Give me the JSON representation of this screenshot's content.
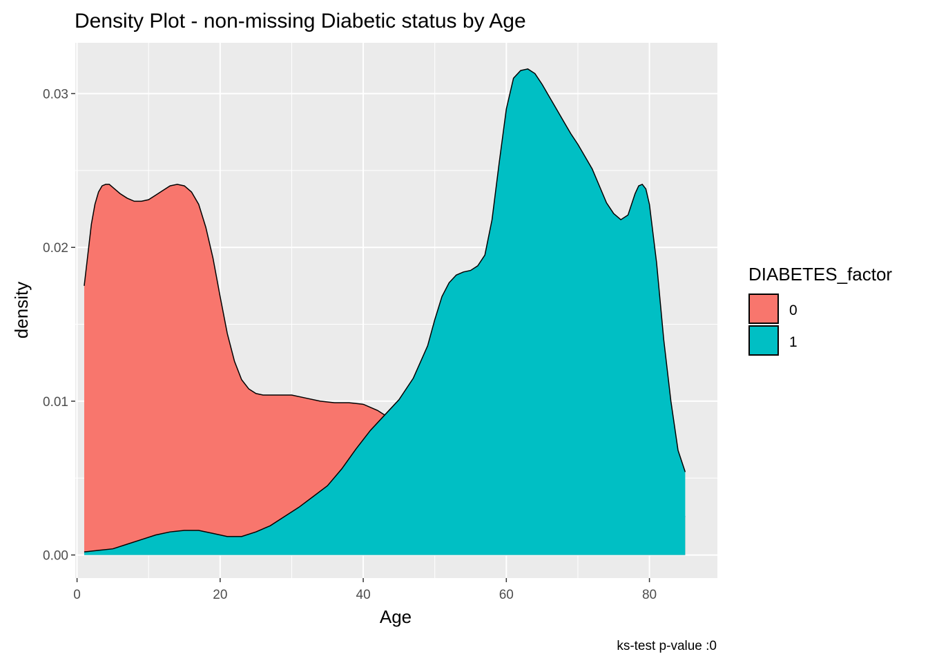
{
  "chart_data": {
    "type": "area",
    "title": "Density Plot - non-missing Diabetic status by Age",
    "xlabel": "Age",
    "ylabel": "density",
    "caption": "ks-test p-value :0",
    "xlim": [
      -0.25,
      89.5
    ],
    "ylim": [
      -0.0015,
      0.0333
    ],
    "x_ticks": [
      0,
      20,
      40,
      60,
      80
    ],
    "x_tick_labels": [
      "0",
      "20",
      "40",
      "60",
      "80"
    ],
    "y_ticks": [
      0.0,
      0.01,
      0.02,
      0.03
    ],
    "y_tick_labels": [
      "0.00",
      "0.01",
      "0.02",
      "0.03"
    ],
    "grid": true,
    "legend": {
      "title": "DIABETES_factor",
      "position": "right",
      "entries": [
        {
          "label": "0",
          "color": "#F8766D"
        },
        {
          "label": "1",
          "color": "#00BFC4"
        }
      ]
    },
    "series": [
      {
        "name": "0",
        "color": "#F8766D",
        "x": [
          1,
          1.5,
          2,
          2.5,
          3,
          3.5,
          4,
          4.5,
          5,
          6,
          7,
          8,
          9,
          10,
          11,
          12,
          13,
          14,
          15,
          16,
          17,
          18,
          19,
          20,
          21,
          22,
          23,
          24,
          25,
          26,
          28,
          30,
          32,
          34,
          36,
          38,
          40,
          42,
          44,
          46,
          48,
          50,
          52,
          54,
          56,
          58,
          60,
          62,
          64,
          66,
          68,
          70,
          72,
          74,
          76,
          78,
          80,
          82,
          84,
          85
        ],
        "y": [
          0.0175,
          0.0195,
          0.0215,
          0.0228,
          0.0236,
          0.024,
          0.0241,
          0.0241,
          0.0239,
          0.0235,
          0.0232,
          0.023,
          0.023,
          0.0231,
          0.0234,
          0.0237,
          0.024,
          0.0241,
          0.024,
          0.0236,
          0.0228,
          0.0213,
          0.0193,
          0.0168,
          0.0144,
          0.0126,
          0.0114,
          0.0108,
          0.0105,
          0.0104,
          0.0104,
          0.0104,
          0.0102,
          0.01,
          0.0099,
          0.0099,
          0.0098,
          0.0094,
          0.0088,
          0.008,
          0.0072,
          0.0064,
          0.0056,
          0.005,
          0.0045,
          0.0041,
          0.0037,
          0.0034,
          0.0032,
          0.003,
          0.0029,
          0.0028,
          0.0027,
          0.0026,
          0.0026,
          0.0025,
          0.0025,
          0.0025,
          0.0025,
          0.0025
        ]
      },
      {
        "name": "1",
        "color": "#00BFC4",
        "x": [
          1,
          3,
          5,
          7,
          9,
          11,
          13,
          15,
          17,
          19,
          21,
          23,
          25,
          27,
          29,
          31,
          33,
          35,
          37,
          39,
          41,
          43,
          45,
          47,
          49,
          50,
          51,
          52,
          53,
          54,
          55,
          56,
          57,
          58,
          59,
          60,
          61,
          62,
          63,
          64,
          65,
          66,
          67,
          68,
          69,
          70,
          71,
          72,
          73,
          74,
          75,
          76,
          77,
          78,
          78.5,
          79,
          79.5,
          80,
          81,
          82,
          83,
          84,
          85
        ],
        "y": [
          0.0002,
          0.0003,
          0.0004,
          0.0007,
          0.001,
          0.0013,
          0.0015,
          0.0016,
          0.0016,
          0.0014,
          0.0012,
          0.0012,
          0.0015,
          0.0019,
          0.0025,
          0.0031,
          0.0038,
          0.0045,
          0.0056,
          0.0069,
          0.0081,
          0.0091,
          0.0101,
          0.0115,
          0.0136,
          0.0153,
          0.0168,
          0.0177,
          0.0182,
          0.0184,
          0.0185,
          0.0188,
          0.0195,
          0.0218,
          0.0255,
          0.029,
          0.031,
          0.0315,
          0.0316,
          0.0313,
          0.0306,
          0.0298,
          0.029,
          0.0282,
          0.0274,
          0.0267,
          0.0259,
          0.0251,
          0.024,
          0.0229,
          0.0222,
          0.0218,
          0.0221,
          0.0235,
          0.024,
          0.0241,
          0.0238,
          0.0228,
          0.019,
          0.014,
          0.01,
          0.0068,
          0.0054
        ]
      }
    ]
  }
}
